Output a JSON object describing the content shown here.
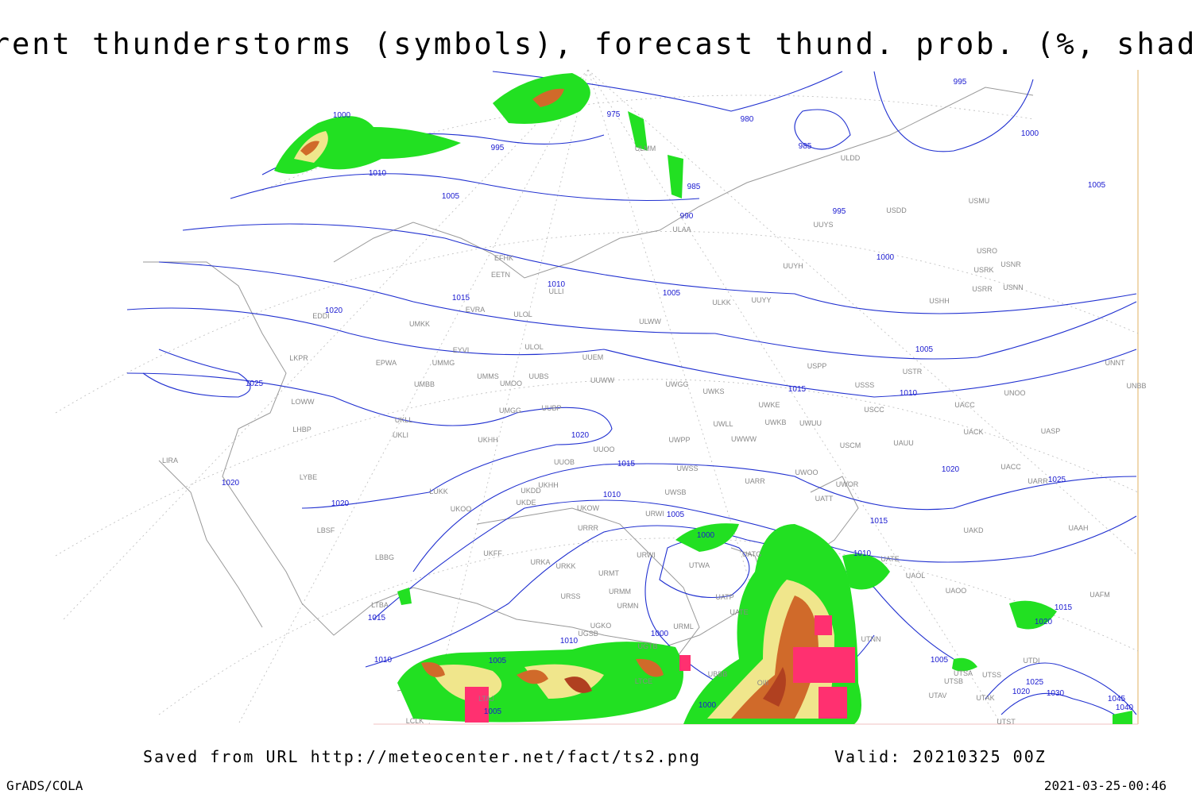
{
  "header": {
    "title": "Current thunderstorms (symbols), forecast thund. prob. (%, shaded)"
  },
  "footer": {
    "saved": "Saved from URL http://meteocenter.net/fact/ts2.png",
    "valid": "Valid: 20210325 00Z",
    "software": "GrADS/COLA",
    "timestamp": "2021-03-25-00:46"
  },
  "isobars": [
    "1000",
    "975",
    "980",
    "985",
    "995",
    "995",
    "1000",
    "1005",
    "1010",
    "1005",
    "985",
    "990",
    "995",
    "1000",
    "1005",
    "1010",
    "1015",
    "1020",
    "1025",
    "1005",
    "1010",
    "1015",
    "1020",
    "1015",
    "1010",
    "1005",
    "1000",
    "1015",
    "1020",
    "1025",
    "1020",
    "1020",
    "1010",
    "1015",
    "1020",
    "1015",
    "1010",
    "1000",
    "1005",
    "1010",
    "1005",
    "1005",
    "1000",
    "1025",
    "1030",
    "1020",
    "1045",
    "1040"
  ],
  "stations": [
    "ULDD",
    "USMU",
    "USDD",
    "UUYS",
    "ULAA",
    "ULMM",
    "USRO",
    "USRK",
    "USNR",
    "USRR",
    "USNN",
    "UUYH",
    "USHH",
    "ULKK",
    "UUYY",
    "EFHK",
    "EETN",
    "ULLI",
    "EVRA",
    "ULOL",
    "ULWW",
    "EDDI",
    "UMKK",
    "EYVI",
    "ULOL",
    "UUEM",
    "EPWA",
    "UMMG",
    "LKPR",
    "USPP",
    "USTR",
    "UMMS",
    "UMOO",
    "UUBS",
    "UUWW",
    "UWGG",
    "UWKS",
    "USSS",
    "UNNT",
    "UNBB",
    "UNOO",
    "UMBB",
    "LOWW",
    "UWKE",
    "UWKB",
    "UWUU",
    "USCC",
    "UACC",
    "UMGG",
    "UUBP",
    "UKLL",
    "UKLI",
    "LHBP",
    "UWLL",
    "UWWW",
    "UWPP",
    "USCM",
    "UAUU",
    "UACK",
    "UASP",
    "UKHH",
    "UUOO",
    "LIRA",
    "UUOB",
    "UWSS",
    "UWOO",
    "UACC",
    "UARR",
    "LYBE",
    "LUKK",
    "UKHH",
    "UKDD",
    "UARR",
    "UWOR",
    "UATT",
    "UKDE",
    "UKOO",
    "UKOW",
    "URWI",
    "UWSB",
    "UAKD",
    "UAAH",
    "LBSF",
    "URRR",
    "UKFF",
    "LBBG",
    "URWI",
    "UATG",
    "UATE",
    "UAOL",
    "URKA",
    "URKK",
    "UTWA",
    "URMT",
    "UAOO",
    "UAFM",
    "URSS",
    "URMM",
    "UATP",
    "UATE",
    "URMN",
    "UGKO",
    "URML",
    "UGSB",
    "UTNN",
    "LTBA",
    "UGTB",
    "UBBB",
    "UTSA",
    "UTSB",
    "UTAV",
    "UTSS",
    "UTDI",
    "UTST",
    "LTAJ",
    "LTCE",
    "OIII",
    "LCLK",
    "UTAK"
  ]
}
